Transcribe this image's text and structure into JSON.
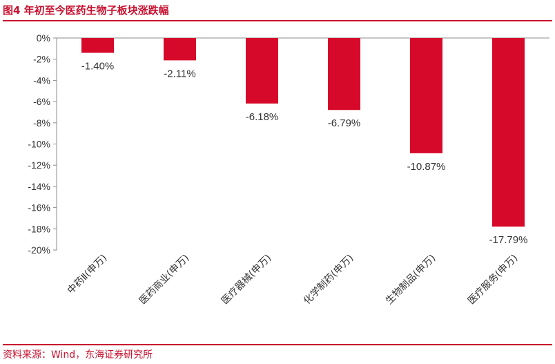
{
  "header": {
    "title": "图4  年初至今医药生物子板块涨跌幅"
  },
  "footer": {
    "source": "资料来源：Wind，东海证券研究所"
  },
  "colors": {
    "bar": "#d7092a",
    "accent": "#c8102e"
  },
  "chart_data": {
    "type": "bar",
    "title": "",
    "xlabel": "",
    "ylabel": "",
    "ylim": [
      -20,
      0
    ],
    "yticks": [
      "0%",
      "-2%",
      "-4%",
      "-6%",
      "-8%",
      "-10%",
      "-12%",
      "-14%",
      "-16%",
      "-18%",
      "-20%"
    ],
    "categories": [
      "中药Ⅱ(申万)",
      "医药商业(申万)",
      "医疗器械(申万)",
      "化学制药(申万)",
      "生物制品(申万)",
      "医疗服务(申万)"
    ],
    "values": [
      -1.4,
      -2.11,
      -6.18,
      -6.79,
      -10.87,
      -17.79
    ],
    "data_labels": [
      "-1.40%",
      "-2.11%",
      "-6.18%",
      "-6.79%",
      "-10.87%",
      "-17.79%"
    ],
    "grid": false,
    "legend": "none"
  }
}
